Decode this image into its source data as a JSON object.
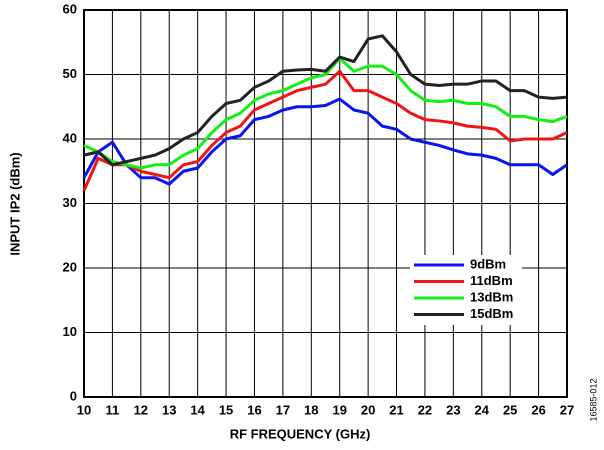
{
  "chart_data": {
    "type": "line",
    "xlabel": "RF FREQUENCY (GHz)",
    "ylabel": "INPUT IP2 (dBm)",
    "annotation": "16585-012",
    "x": [
      10,
      10.5,
      11,
      11.5,
      12,
      12.5,
      13,
      13.5,
      14,
      14.5,
      15,
      15.5,
      16,
      16.5,
      17,
      17.5,
      18,
      18.5,
      19,
      19.5,
      20,
      20.5,
      21,
      21.5,
      22,
      22.5,
      23,
      23.5,
      24,
      24.5,
      25,
      25.5,
      26,
      26.5,
      27
    ],
    "series": [
      {
        "name": "9dBm",
        "color": "#0a14f0",
        "values": [
          34,
          38,
          39.5,
          36,
          34,
          34,
          33,
          35,
          35.5,
          38,
          40,
          40.5,
          43,
          43.5,
          44.5,
          45,
          45,
          45.2,
          46.2,
          44.5,
          44,
          42,
          41.5,
          40,
          39.5,
          39,
          38.3,
          37.7,
          37.5,
          37,
          36,
          36,
          36,
          34.5,
          36
        ]
      },
      {
        "name": "11dBm",
        "color": "#f01414",
        "values": [
          32,
          37,
          36,
          36,
          35,
          34.5,
          34,
          36,
          36.5,
          39,
          41,
          42,
          44.5,
          45.5,
          46.5,
          47.5,
          48,
          48.5,
          50.5,
          47.5,
          47.5,
          46.5,
          45.5,
          44,
          43,
          42.8,
          42.5,
          42,
          41.8,
          41.5,
          39.7,
          40,
          40,
          40,
          41
        ]
      },
      {
        "name": "13dBm",
        "color": "#14f014",
        "values": [
          39,
          38,
          36.5,
          36,
          35.5,
          36,
          36,
          37.5,
          38.5,
          41,
          43,
          44,
          46,
          47,
          47.5,
          48.5,
          49.5,
          50,
          52.5,
          50.5,
          51.3,
          51.3,
          50,
          47.5,
          46,
          45.8,
          46,
          45.5,
          45.5,
          45,
          43.5,
          43.5,
          43,
          42.7,
          43.5
        ]
      },
      {
        "name": "15dBm",
        "color": "#222222",
        "values": [
          37.5,
          38,
          36,
          36.5,
          37,
          37.5,
          38.5,
          40,
          41,
          43.5,
          45.5,
          46,
          48,
          49,
          50.5,
          50.7,
          50.8,
          50.5,
          52.7,
          52,
          55.5,
          56,
          53.5,
          50,
          48.5,
          48.3,
          48.5,
          48.5,
          49,
          49,
          47.5,
          47.5,
          46.5,
          46.3,
          46.5
        ]
      }
    ],
    "xlim": [
      10,
      27
    ],
    "xticks": [
      10,
      11,
      12,
      13,
      14,
      15,
      16,
      17,
      18,
      19,
      20,
      21,
      22,
      23,
      24,
      25,
      26,
      27
    ],
    "ylim": [
      0,
      60
    ],
    "yticks": [
      0,
      10,
      20,
      30,
      40,
      50,
      60
    ],
    "grid": true,
    "legend": "lower-right"
  }
}
